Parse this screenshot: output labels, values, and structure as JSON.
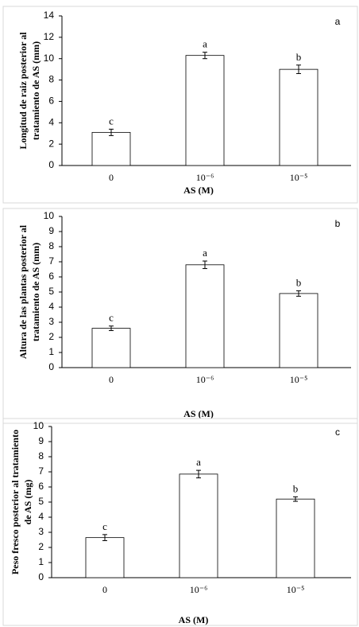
{
  "chart_data": [
    {
      "type": "bar",
      "panel": "a",
      "y_label": [
        "Longitud de raiz posterior al",
        "tratamiento de AS (mm)"
      ],
      "x_label": "AS (M)",
      "categories": [
        "0",
        "10⁻⁶",
        "10⁻⁵"
      ],
      "values": [
        3.1,
        10.3,
        9.0
      ],
      "errors": [
        0.3,
        0.3,
        0.4
      ],
      "bar_labels": [
        "c",
        "a",
        "b"
      ],
      "color": "#ffffff",
      "ylim": [
        0,
        14
      ],
      "yticks": [
        0,
        2,
        4,
        6,
        8,
        10,
        12,
        14
      ]
    },
    {
      "type": "bar",
      "panel": "b",
      "y_label": [
        "Altura de las plantas  posterior al",
        "tratamiento de AS (mm)"
      ],
      "x_label": "AS (M)",
      "categories": [
        "0",
        "10⁻⁶",
        "10⁻⁵"
      ],
      "values": [
        2.6,
        6.8,
        4.9
      ],
      "errors": [
        0.15,
        0.25,
        0.18
      ],
      "bar_labels": [
        "c",
        "a",
        "b"
      ],
      "color": "#ffffff",
      "ylim": [
        0,
        10
      ],
      "yticks": [
        0,
        1,
        2,
        3,
        4,
        5,
        6,
        7,
        8,
        9,
        10
      ]
    },
    {
      "type": "bar",
      "panel": "c",
      "y_label": [
        "Peso fresco posterior al tratamiento",
        "de AS (mg)"
      ],
      "x_label": "AS (M)",
      "categories": [
        "0",
        "10⁻⁶",
        "10⁻⁵"
      ],
      "values": [
        2.65,
        6.85,
        5.2
      ],
      "errors": [
        0.2,
        0.25,
        0.15
      ],
      "bar_labels": [
        "c",
        "a",
        "b"
      ],
      "color": "#ffffff",
      "ylim": [
        0,
        10
      ],
      "yticks": [
        0,
        1,
        2,
        3,
        4,
        5,
        6,
        7,
        8,
        9,
        10
      ]
    }
  ]
}
